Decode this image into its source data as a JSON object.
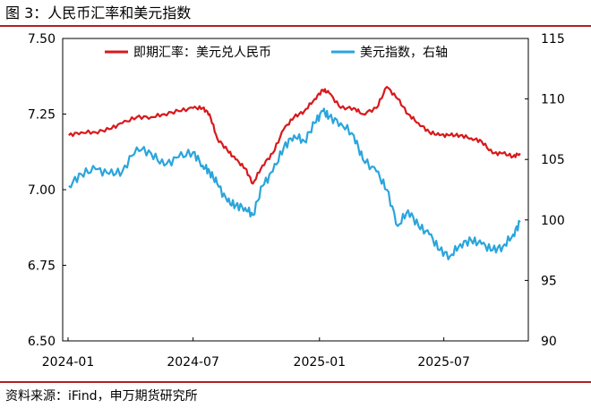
{
  "title": "图 3：人民币汇率和美元指数",
  "source": "资料来源：iFind，申万期货研究所",
  "colors": {
    "spot": "#d7191c",
    "dxy": "#2aa5dc",
    "rule": "#b01f24"
  },
  "chart_data": {
    "type": "line",
    "title": "",
    "xlabel": "",
    "ylabel": "",
    "x_ticks": [
      "2024-01",
      "2024-07",
      "2025-01",
      "2025-07"
    ],
    "y_left": {
      "range": [
        6.5,
        7.5
      ],
      "ticks": [
        "7.50",
        "7.25",
        "7.00",
        "6.75",
        "6.50"
      ]
    },
    "y_right": {
      "range": [
        90,
        115
      ],
      "ticks": [
        "115",
        "110",
        "105",
        "100",
        "95",
        "90"
      ]
    },
    "legend": "top",
    "grid": false,
    "series": [
      {
        "name": "即期汇率：美元兑人民币",
        "axis": "left",
        "x": [
          "2024-01-02",
          "2024-01-20",
          "2024-02-10",
          "2024-03-01",
          "2024-03-20",
          "2024-04-10",
          "2024-05-01",
          "2024-05-20",
          "2024-06-10",
          "2024-07-01",
          "2024-07-15",
          "2024-07-25",
          "2024-08-05",
          "2024-08-20",
          "2024-09-01",
          "2024-09-15",
          "2024-09-26",
          "2024-10-10",
          "2024-10-25",
          "2024-11-10",
          "2024-11-25",
          "2024-12-10",
          "2024-12-25",
          "2025-01-06",
          "2025-01-15",
          "2025-02-01",
          "2025-02-20",
          "2025-03-05",
          "2025-03-25",
          "2025-04-09",
          "2025-04-25",
          "2025-05-10",
          "2025-05-25",
          "2025-06-10",
          "2025-06-25",
          "2025-07-10",
          "2025-07-25",
          "2025-08-10",
          "2025-08-25",
          "2025-09-10",
          "2025-09-25",
          "2025-10-10",
          "2025-10-20"
        ],
        "values": [
          7.18,
          7.19,
          7.19,
          7.2,
          7.22,
          7.24,
          7.24,
          7.25,
          7.26,
          7.27,
          7.27,
          7.25,
          7.17,
          7.13,
          7.1,
          7.07,
          7.02,
          7.08,
          7.12,
          7.2,
          7.24,
          7.26,
          7.3,
          7.33,
          7.32,
          7.27,
          7.27,
          7.25,
          7.27,
          7.34,
          7.3,
          7.25,
          7.22,
          7.19,
          7.18,
          7.18,
          7.18,
          7.17,
          7.16,
          7.12,
          7.12,
          7.11,
          7.12
        ]
      },
      {
        "name": "美元指数，右轴",
        "axis": "right",
        "x": [
          "2024-01-02",
          "2024-01-20",
          "2024-02-10",
          "2024-03-01",
          "2024-03-20",
          "2024-04-10",
          "2024-05-01",
          "2024-05-20",
          "2024-06-10",
          "2024-07-01",
          "2024-07-15",
          "2024-07-25",
          "2024-08-05",
          "2024-08-20",
          "2024-09-01",
          "2024-09-15",
          "2024-09-26",
          "2024-10-10",
          "2024-10-25",
          "2024-11-10",
          "2024-11-25",
          "2024-12-10",
          "2024-12-25",
          "2025-01-06",
          "2025-01-15",
          "2025-02-01",
          "2025-02-20",
          "2025-03-05",
          "2025-03-25",
          "2025-04-09",
          "2025-04-25",
          "2025-05-10",
          "2025-05-25",
          "2025-06-10",
          "2025-06-25",
          "2025-07-10",
          "2025-07-25",
          "2025-08-10",
          "2025-08-25",
          "2025-09-10",
          "2025-09-25",
          "2025-10-10",
          "2025-10-20"
        ],
        "values": [
          102.8,
          103.8,
          104.2,
          103.8,
          104.0,
          106.0,
          105.5,
          104.5,
          105.2,
          105.6,
          104.5,
          104.0,
          103.0,
          101.5,
          101.2,
          101.0,
          100.4,
          102.8,
          104.0,
          106.0,
          107.0,
          106.5,
          108.0,
          109.0,
          108.5,
          108.0,
          107.0,
          105.0,
          104.0,
          102.5,
          99.5,
          100.8,
          99.5,
          98.8,
          97.5,
          97.0,
          98.0,
          98.3,
          98.0,
          97.5,
          97.8,
          98.8,
          99.8
        ]
      }
    ]
  }
}
